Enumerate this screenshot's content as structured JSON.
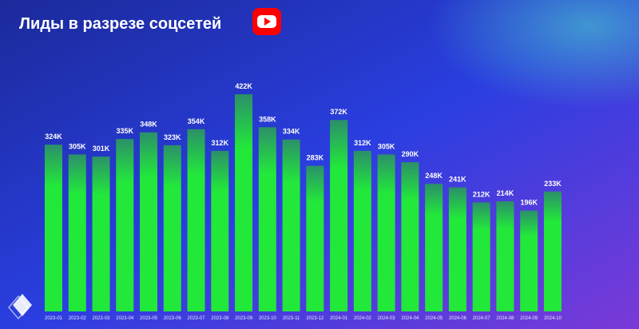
{
  "chart_data": {
    "type": "bar",
    "title": "Лиды в разрезе соцсетей",
    "categories": [
      "2023-01",
      "2023-02",
      "2023-03",
      "2023-04",
      "2023-05",
      "2023-06",
      "2023-07",
      "2023-08",
      "2023-09",
      "2023-10",
      "2023-11",
      "2023-12",
      "2024-01",
      "2024-02",
      "2024-03",
      "2024-04",
      "2024-05",
      "2024-06",
      "2024-07",
      "2024-08",
      "2024-09",
      "2024-10"
    ],
    "values": [
      324000,
      305000,
      301000,
      335000,
      348000,
      323000,
      354000,
      312000,
      422000,
      358000,
      334000,
      283000,
      372000,
      312000,
      305000,
      290000,
      248000,
      241000,
      212000,
      214000,
      196000,
      233000
    ],
    "value_labels": [
      "324K",
      "305K",
      "301K",
      "335K",
      "348K",
      "323K",
      "354K",
      "312K",
      "422K",
      "358K",
      "334K",
      "283K",
      "372K",
      "312K",
      "305K",
      "290K",
      "248K",
      "241K",
      "212K",
      "214K",
      "196K",
      "233K"
    ],
    "color": "#22e83a"
  }
}
